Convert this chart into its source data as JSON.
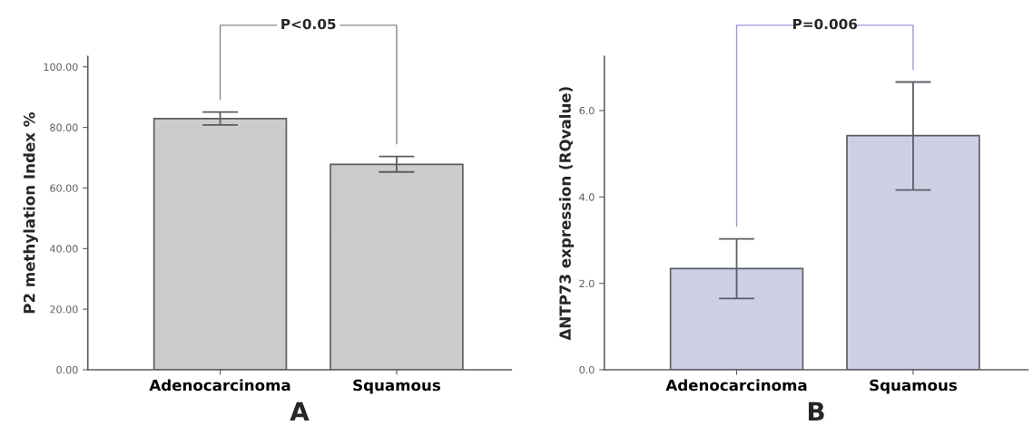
{
  "chart_data": [
    {
      "type": "bar",
      "categories": [
        "Adenocarcinoma",
        "Squamous"
      ],
      "values": [
        82.9,
        67.8
      ],
      "errors": [
        [
          80.8,
          85.1
        ],
        [
          65.3,
          70.4
        ]
      ],
      "colors": [
        "#cccccc",
        "#cccccc"
      ],
      "ylabel": "P2 methylation Index %",
      "xlabel": "A",
      "ylim": [
        0,
        103.4
      ],
      "yticks": [
        {
          "value": 0,
          "label": "0.00"
        },
        {
          "value": 20,
          "label": "20.00"
        },
        {
          "value": 40,
          "label": "40.00"
        },
        {
          "value": 60,
          "label": "60.00"
        },
        {
          "value": 80,
          "label": "80.00"
        },
        {
          "value": 100,
          "label": "100.00"
        }
      ],
      "annotations": [
        "P<0.05"
      ],
      "grid": false
    },
    {
      "type": "bar",
      "categories": [
        "Adenocarcinoma",
        "Squamous"
      ],
      "values": [
        2.34,
        5.42
      ],
      "errors": [
        [
          1.65,
          3.03
        ],
        [
          4.16,
          6.66
        ]
      ],
      "colors": [
        "#cdd0e4",
        "#cdd0e4"
      ],
      "ylabel": "ΔNTP73 expression (RQvalue)",
      "xlabel": "B",
      "ylim": [
        0,
        7.25
      ],
      "yticks": [
        {
          "value": 0,
          "label": "0.0"
        },
        {
          "value": 2,
          "label": "2.0"
        },
        {
          "value": 4,
          "label": "4.0"
        },
        {
          "value": 6,
          "label": "6.0"
        }
      ],
      "annotations": [
        "P=0.006"
      ],
      "grid": false
    }
  ]
}
